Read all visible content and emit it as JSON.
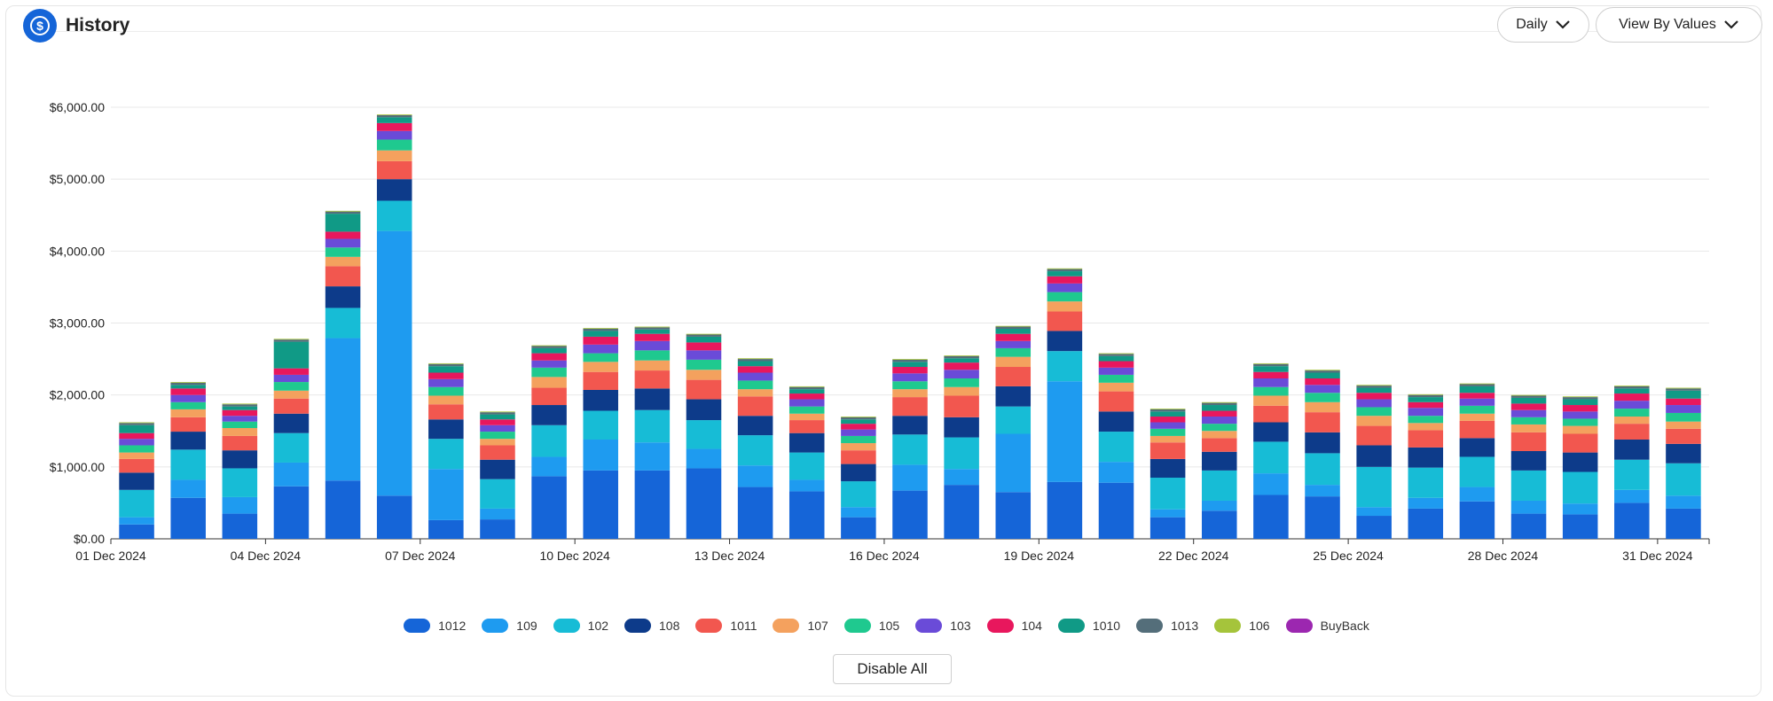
{
  "header": {
    "title": "History",
    "icon": "dollar-circle-icon"
  },
  "controls": {
    "period_label": "Daily",
    "view_label": "View By Values"
  },
  "footer": {
    "disable_all_label": "Disable All"
  },
  "chart_data": {
    "type": "bar",
    "stacked": true,
    "title": "History",
    "xlabel": "",
    "ylabel": "",
    "ylim": [
      0,
      6000
    ],
    "yticks": [
      "$0.00",
      "$1,000.00",
      "$2,000.00",
      "$3,000.00",
      "$4,000.00",
      "$5,000.00",
      "$6,000.00"
    ],
    "xticks": [
      "01 Dec 2024",
      "04 Dec 2024",
      "07 Dec 2024",
      "10 Dec 2024",
      "13 Dec 2024",
      "16 Dec 2024",
      "19 Dec 2024",
      "22 Dec 2024",
      "25 Dec 2024",
      "28 Dec 2024",
      "31 Dec 2024"
    ],
    "grid": true,
    "legend_position": "bottom",
    "categories": [
      "01 Dec 2024",
      "02 Dec 2024",
      "03 Dec 2024",
      "04 Dec 2024",
      "05 Dec 2024",
      "06 Dec 2024",
      "07 Dec 2024",
      "08 Dec 2024",
      "09 Dec 2024",
      "10 Dec 2024",
      "11 Dec 2024",
      "12 Dec 2024",
      "13 Dec 2024",
      "14 Dec 2024",
      "15 Dec 2024",
      "16 Dec 2024",
      "17 Dec 2024",
      "18 Dec 2024",
      "19 Dec 2024",
      "20 Dec 2024",
      "21 Dec 2024",
      "22 Dec 2024",
      "23 Dec 2024",
      "24 Dec 2024",
      "25 Dec 2024",
      "26 Dec 2024",
      "27 Dec 2024",
      "28 Dec 2024",
      "29 Dec 2024",
      "30 Dec 2024",
      "31 Dec 2024"
    ],
    "series": [
      {
        "name": "1012",
        "color": "#1565d8",
        "values": [
          200,
          570,
          350,
          730,
          810,
          600,
          260,
          270,
          870,
          950,
          950,
          980,
          720,
          660,
          300,
          670,
          750,
          650,
          790,
          780,
          300,
          390,
          610,
          590,
          320,
          420,
          520,
          350,
          340,
          500,
          420
        ]
      },
      {
        "name": "109",
        "color": "#1e9bf0",
        "values": [
          100,
          250,
          230,
          330,
          1980,
          3680,
          710,
          150,
          270,
          430,
          390,
          270,
          300,
          160,
          140,
          360,
          220,
          810,
          1400,
          290,
          110,
          140,
          300,
          160,
          120,
          150,
          200,
          180,
          150,
          180,
          180
        ]
      },
      {
        "name": "102",
        "color": "#17bcd6",
        "values": [
          380,
          420,
          400,
          410,
          420,
          420,
          420,
          410,
          440,
          400,
          450,
          400,
          420,
          380,
          360,
          420,
          440,
          380,
          420,
          420,
          440,
          420,
          440,
          440,
          560,
          420,
          420,
          420,
          440,
          420,
          450
        ]
      },
      {
        "name": "108",
        "color": "#0d3b8a",
        "values": [
          240,
          250,
          250,
          270,
          300,
          300,
          270,
          270,
          280,
          290,
          300,
          290,
          270,
          270,
          240,
          260,
          280,
          280,
          280,
          280,
          260,
          260,
          270,
          290,
          300,
          280,
          260,
          270,
          270,
          280,
          270
        ]
      },
      {
        "name": "1011",
        "color": "#f2574f",
        "values": [
          190,
          200,
          200,
          210,
          280,
          250,
          210,
          200,
          240,
          250,
          250,
          270,
          270,
          180,
          190,
          260,
          300,
          270,
          270,
          280,
          230,
          190,
          230,
          280,
          270,
          240,
          240,
          260,
          260,
          220,
          210
        ]
      },
      {
        "name": "107",
        "color": "#f4a15e",
        "values": [
          90,
          110,
          110,
          110,
          130,
          150,
          120,
          90,
          150,
          140,
          140,
          140,
          100,
          90,
          100,
          110,
          120,
          140,
          140,
          120,
          90,
          100,
          140,
          140,
          140,
          100,
          100,
          110,
          110,
          100,
          100
        ]
      },
      {
        "name": "105",
        "color": "#1fc98f",
        "values": [
          100,
          100,
          90,
          120,
          130,
          150,
          120,
          100,
          130,
          120,
          140,
          140,
          120,
          100,
          100,
          110,
          120,
          120,
          130,
          110,
          100,
          100,
          120,
          130,
          120,
          100,
          110,
          100,
          100,
          110,
          120
        ]
      },
      {
        "name": "103",
        "color": "#6a4bd8",
        "values": [
          90,
          100,
          80,
          100,
          120,
          120,
          110,
          90,
          100,
          120,
          130,
          130,
          110,
          100,
          90,
          110,
          120,
          100,
          120,
          100,
          90,
          100,
          120,
          110,
          110,
          110,
          100,
          100,
          100,
          110,
          110
        ]
      },
      {
        "name": "104",
        "color": "#e8175d",
        "values": [
          80,
          90,
          80,
          90,
          100,
          110,
          90,
          80,
          100,
          110,
          100,
          110,
          90,
          80,
          80,
          90,
          100,
          100,
          100,
          90,
          80,
          80,
          90,
          90,
          90,
          80,
          80,
          90,
          90,
          100,
          90
        ]
      },
      {
        "name": "1010",
        "color": "#109a86",
        "values": [
          110,
          50,
          50,
          370,
          250,
          80,
          90,
          70,
          70,
          80,
          60,
          80,
          70,
          60,
          60,
          70,
          60,
          70,
          70,
          70,
          70,
          80,
          80,
          80,
          70,
          70,
          90,
          80,
          80,
          70,
          110
        ]
      },
      {
        "name": "1013",
        "color": "#546e7a",
        "values": [
          30,
          30,
          30,
          30,
          30,
          30,
          30,
          30,
          30,
          30,
          30,
          30,
          30,
          30,
          30,
          30,
          30,
          30,
          30,
          30,
          30,
          30,
          30,
          30,
          30,
          30,
          30,
          30,
          30,
          30,
          30
        ]
      },
      {
        "name": "106",
        "color": "#a5c43b",
        "values": [
          10,
          10,
          10,
          10,
          10,
          10,
          10,
          10,
          10,
          10,
          10,
          10,
          10,
          10,
          10,
          10,
          10,
          10,
          10,
          10,
          10,
          10,
          10,
          10,
          10,
          10,
          10,
          10,
          10,
          10,
          10
        ]
      },
      {
        "name": "BuyBack",
        "color": "#9c27b0",
        "values": [
          0,
          0,
          0,
          0,
          0,
          0,
          0,
          0,
          0,
          0,
          0,
          0,
          0,
          0,
          0,
          0,
          0,
          0,
          0,
          0,
          0,
          0,
          0,
          0,
          0,
          0,
          0,
          0,
          0,
          0,
          0
        ]
      }
    ]
  }
}
